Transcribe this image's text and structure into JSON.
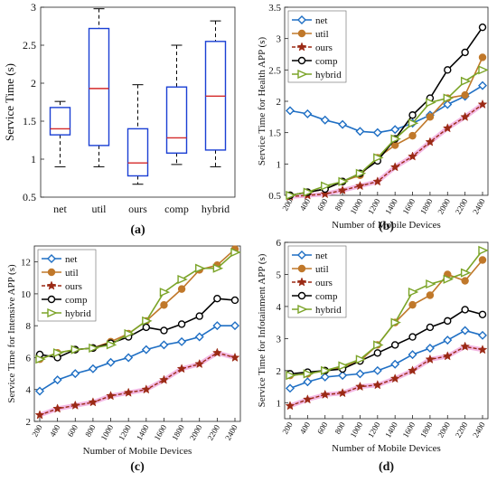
{
  "chart_data": [
    {
      "panel_label": "(a)",
      "type": "box",
      "ylabel": "Service Time (s)",
      "xlabel": "",
      "ylim": [
        0.5,
        3.0
      ],
      "yticks": [
        0.5,
        1,
        1.5,
        2,
        2.5,
        3
      ],
      "categories": [
        "net",
        "util",
        "ours",
        "comp",
        "hybrid"
      ],
      "boxes": [
        {
          "name": "net",
          "whisker_low": 0.9,
          "q1": 1.32,
          "median": 1.4,
          "q3": 1.68,
          "whisker_high": 1.76
        },
        {
          "name": "util",
          "whisker_low": 0.9,
          "q1": 1.18,
          "median": 1.93,
          "q3": 2.72,
          "whisker_high": 2.98
        },
        {
          "name": "ours",
          "whisker_low": 0.67,
          "q1": 0.78,
          "median": 0.95,
          "q3": 1.4,
          "whisker_high": 1.98
        },
        {
          "name": "comp",
          "whisker_low": 0.93,
          "q1": 1.08,
          "median": 1.28,
          "q3": 1.95,
          "whisker_high": 2.5
        },
        {
          "name": "hybrid",
          "whisker_low": 0.9,
          "q1": 1.12,
          "median": 1.83,
          "q3": 2.55,
          "whisker_high": 2.82
        }
      ]
    },
    {
      "panel_label": "(b)",
      "type": "line",
      "ylabel": "Service Time for Health APP (s)",
      "xlabel": "Number of Mobile Devices",
      "ylim": [
        0.5,
        3.5
      ],
      "yticks": [
        0.5,
        1,
        1.5,
        2,
        2.5,
        3,
        3.5
      ],
      "x": [
        200,
        400,
        600,
        800,
        1000,
        1200,
        1400,
        1600,
        1800,
        2000,
        2200,
        2400
      ],
      "legend": "top-left",
      "series": [
        {
          "name": "net",
          "color": "#1f6fc4",
          "marker": "diamond",
          "values": [
            1.85,
            1.8,
            1.7,
            1.63,
            1.52,
            1.5,
            1.55,
            1.65,
            1.78,
            1.95,
            2.08,
            2.25
          ]
        },
        {
          "name": "util",
          "color": "#c0782a",
          "marker": "circle",
          "values": [
            0.5,
            0.55,
            0.6,
            0.72,
            0.82,
            1.1,
            1.3,
            1.45,
            1.75,
            2.05,
            2.1,
            2.7
          ]
        },
        {
          "name": "ours",
          "color": "#9b2a15",
          "marker": "star",
          "values": [
            0.48,
            0.5,
            0.52,
            0.58,
            0.65,
            0.72,
            0.95,
            1.12,
            1.35,
            1.57,
            1.75,
            1.95
          ]
        },
        {
          "name": "comp",
          "color": "#000000",
          "marker": "circle",
          "values": [
            0.5,
            0.55,
            0.6,
            0.72,
            0.85,
            1.05,
            1.4,
            1.78,
            2.05,
            2.5,
            2.78,
            3.18
          ]
        },
        {
          "name": "hybrid",
          "color": "#7ba428",
          "marker": "triangle-right",
          "values": [
            0.5,
            0.55,
            0.65,
            0.72,
            0.85,
            1.1,
            1.4,
            1.65,
            1.98,
            2.05,
            2.32,
            2.5
          ]
        }
      ]
    },
    {
      "panel_label": "(c)",
      "type": "line",
      "ylabel": "Service Time for Intensive APP (s)",
      "xlabel": "Number of Mobile Devices",
      "ylim": [
        2,
        13
      ],
      "yticks": [
        2,
        4,
        6,
        8,
        10,
        12
      ],
      "x": [
        200,
        400,
        600,
        800,
        1000,
        1200,
        1400,
        1600,
        1800,
        2000,
        2200,
        2400
      ],
      "legend": "top-left",
      "series": [
        {
          "name": "net",
          "color": "#1f6fc4",
          "marker": "diamond",
          "values": [
            3.9,
            4.6,
            5.0,
            5.3,
            5.7,
            6.0,
            6.5,
            6.8,
            7.0,
            7.3,
            8.0,
            8.0
          ]
        },
        {
          "name": "util",
          "color": "#c0782a",
          "marker": "circle",
          "values": [
            5.9,
            6.3,
            6.5,
            6.6,
            7.0,
            7.5,
            8.3,
            9.3,
            10.3,
            11.5,
            11.8,
            12.8
          ]
        },
        {
          "name": "ours",
          "color": "#9b2a15",
          "marker": "star",
          "values": [
            2.4,
            2.8,
            3.0,
            3.2,
            3.6,
            3.8,
            4.0,
            4.6,
            5.3,
            5.6,
            6.3,
            6.0
          ]
        },
        {
          "name": "comp",
          "color": "#000000",
          "marker": "circle",
          "values": [
            6.2,
            6.0,
            6.5,
            6.6,
            6.9,
            7.3,
            7.9,
            7.7,
            8.1,
            8.6,
            9.7,
            9.6
          ]
        },
        {
          "name": "hybrid",
          "color": "#7ba428",
          "marker": "triangle-right",
          "values": [
            5.9,
            6.3,
            6.5,
            6.6,
            6.8,
            7.5,
            8.3,
            10.1,
            10.9,
            11.6,
            11.6,
            12.6
          ]
        }
      ]
    },
    {
      "panel_label": "(d)",
      "type": "line",
      "ylabel": "Service Time for Infotainment APP (s)",
      "xlabel": "Number of Mobile Devices",
      "ylim": [
        0.5,
        6.0
      ],
      "yticks": [
        1,
        2,
        3,
        4,
        5,
        6
      ],
      "x": [
        200,
        400,
        600,
        800,
        1000,
        1200,
        1400,
        1600,
        1800,
        2000,
        2200,
        2400
      ],
      "legend": "top-left",
      "series": [
        {
          "name": "net",
          "color": "#1f6fc4",
          "marker": "diamond",
          "values": [
            1.45,
            1.65,
            1.8,
            1.85,
            1.9,
            2.0,
            2.2,
            2.5,
            2.7,
            2.95,
            3.25,
            3.1
          ]
        },
        {
          "name": "util",
          "color": "#c0782a",
          "marker": "circle",
          "values": [
            1.85,
            1.9,
            2.0,
            2.1,
            2.3,
            2.8,
            3.5,
            4.05,
            4.35,
            5.0,
            4.8,
            5.45
          ]
        },
        {
          "name": "ours",
          "color": "#9b2a15",
          "marker": "star",
          "values": [
            0.9,
            1.1,
            1.25,
            1.3,
            1.5,
            1.55,
            1.75,
            2.0,
            2.35,
            2.45,
            2.75,
            2.65
          ]
        },
        {
          "name": "comp",
          "color": "#000000",
          "marker": "circle",
          "values": [
            1.9,
            1.95,
            2.0,
            2.05,
            2.3,
            2.55,
            2.8,
            3.05,
            3.35,
            3.55,
            3.9,
            3.75
          ]
        },
        {
          "name": "hybrid",
          "color": "#7ba428",
          "marker": "triangle-right",
          "values": [
            1.85,
            1.9,
            2.0,
            2.15,
            2.35,
            2.8,
            3.5,
            4.45,
            4.7,
            4.85,
            5.05,
            5.75
          ]
        }
      ]
    }
  ]
}
